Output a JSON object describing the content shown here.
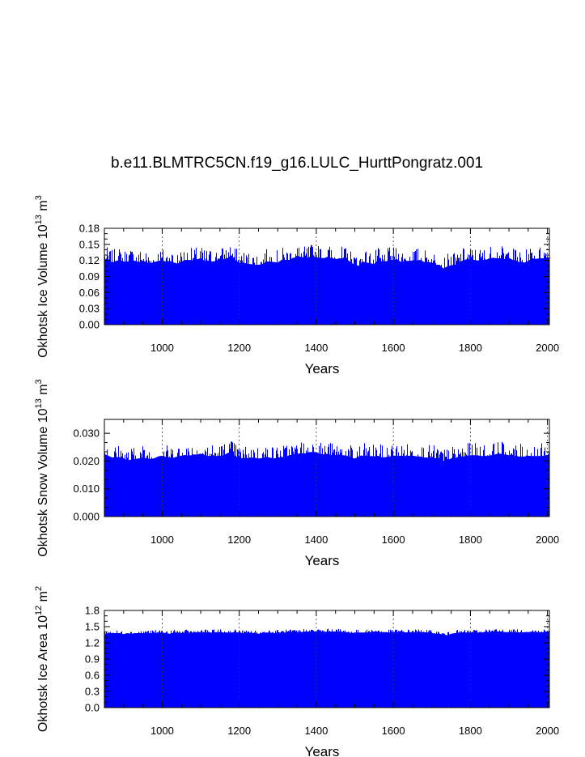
{
  "figure": {
    "title": "b.e11.BLMTRC5CN.f19_g16.LULC_HurttPongratz.001"
  },
  "chart_data": [
    {
      "type": "bar",
      "xlabel": "Years",
      "ylabel_main": "Okhotsk Ice Volume 10",
      "ylabel_exp": "13",
      "ylabel_unit": " m",
      "ylabel_unit_exp": "3",
      "xlim": [
        850,
        2005
      ],
      "ylim": [
        0,
        0.18
      ],
      "xticks": [
        1000,
        1200,
        1400,
        1600,
        1800,
        2000
      ],
      "xtick_labels": [
        "1000",
        "1200",
        "1400",
        "1600",
        "1800",
        "2000"
      ],
      "yticks": [
        0,
        0.03,
        0.06,
        0.09,
        0.12,
        0.15,
        0.18
      ],
      "ytick_labels": [
        "0.00",
        "0.03",
        "0.06",
        "0.09",
        "0.12",
        "0.15",
        "0.18"
      ],
      "color": "#0000ff",
      "grid": "vertical dashed at major x ticks",
      "series": [
        {
          "start_year": 850,
          "step": 10,
          "values": [
            0.123,
            0.121,
            0.116,
            0.119,
            0.121,
            0.118,
            0.118,
            0.121,
            0.119,
            0.117,
            0.12,
            0.116,
            0.115,
            0.117,
            0.119,
            0.12,
            0.118,
            0.119,
            0.116,
            0.114,
            0.118,
            0.121,
            0.121,
            0.12,
            0.122,
            0.124,
            0.119,
            0.12,
            0.118,
            0.119,
            0.124,
            0.122,
            0.125,
            0.13,
            0.121,
            0.115,
            0.116,
            0.114,
            0.113,
            0.112,
            0.112,
            0.113,
            0.118,
            0.118,
            0.117,
            0.116,
            0.121,
            0.121,
            0.121,
            0.125,
            0.126,
            0.127,
            0.123,
            0.126,
            0.128,
            0.126,
            0.125,
            0.124,
            0.127,
            0.124,
            0.122,
            0.124,
            0.122,
            0.122,
            0.116,
            0.112,
            0.11,
            0.118,
            0.116,
            0.115,
            0.113,
            0.121,
            0.114,
            0.118,
            0.121,
            0.121,
            0.122,
            0.117,
            0.119,
            0.119,
            0.12,
            0.12,
            0.121,
            0.117,
            0.117,
            0.116,
            0.112,
            0.112,
            0.105,
            0.109,
            0.111,
            0.112,
            0.117,
            0.12,
            0.122,
            0.122,
            0.121,
            0.12,
            0.121,
            0.121,
            0.124,
            0.125,
            0.124,
            0.124,
            0.122,
            0.125,
            0.121,
            0.12,
            0.115,
            0.116,
            0.119,
            0.124,
            0.123,
            0.124,
            0.124,
            0.126,
            0.124
          ]
        }
      ]
    },
    {
      "type": "bar",
      "xlabel": "Years",
      "ylabel_main": "Okhotsk Snow Volume 10",
      "ylabel_exp": "13",
      "ylabel_unit": " m",
      "ylabel_unit_exp": "3",
      "xlim": [
        850,
        2005
      ],
      "ylim": [
        0,
        0.035
      ],
      "xticks": [
        1000,
        1200,
        1400,
        1600,
        1800,
        2000
      ],
      "xtick_labels": [
        "1000",
        "1200",
        "1400",
        "1600",
        "1800",
        "2000"
      ],
      "yticks": [
        0,
        0.01,
        0.02,
        0.03
      ],
      "ytick_labels": [
        "0.000",
        "0.010",
        "0.020",
        "0.030"
      ],
      "color": "#0000ff",
      "grid": "vertical dashed at major x ticks",
      "series": [
        {
          "start_year": 850,
          "step": 10,
          "values": [
            0.0225,
            0.0219,
            0.0213,
            0.0214,
            0.0214,
            0.021,
            0.0202,
            0.0205,
            0.0208,
            0.0209,
            0.0214,
            0.0209,
            0.0208,
            0.021,
            0.0217,
            0.0219,
            0.0215,
            0.0212,
            0.0212,
            0.0217,
            0.0219,
            0.0222,
            0.0218,
            0.0224,
            0.0223,
            0.0227,
            0.0222,
            0.0218,
            0.0219,
            0.0218,
            0.0219,
            0.0221,
            0.0229,
            0.0233,
            0.0218,
            0.021,
            0.0211,
            0.0211,
            0.0213,
            0.0212,
            0.0209,
            0.0211,
            0.0215,
            0.0212,
            0.0209,
            0.0213,
            0.0214,
            0.0215,
            0.0221,
            0.0224,
            0.0225,
            0.0229,
            0.0227,
            0.0232,
            0.0233,
            0.0232,
            0.0226,
            0.0224,
            0.0226,
            0.0221,
            0.0222,
            0.0223,
            0.0221,
            0.0219,
            0.0211,
            0.0209,
            0.0214,
            0.0219,
            0.022,
            0.0218,
            0.0217,
            0.0219,
            0.0213,
            0.0214,
            0.0216,
            0.022,
            0.0218,
            0.0219,
            0.0218,
            0.0219,
            0.0219,
            0.0217,
            0.0216,
            0.0213,
            0.0212,
            0.0213,
            0.021,
            0.0211,
            0.0201,
            0.0203,
            0.0209,
            0.0208,
            0.0217,
            0.0216,
            0.0218,
            0.0221,
            0.0221,
            0.022,
            0.0218,
            0.0218,
            0.022,
            0.0222,
            0.0226,
            0.0226,
            0.0223,
            0.0221,
            0.0222,
            0.0216,
            0.0216,
            0.0216,
            0.0219,
            0.0218,
            0.0218,
            0.0218,
            0.0219,
            0.0222,
            0.0223
          ]
        }
      ]
    },
    {
      "type": "bar",
      "xlabel": "Years",
      "ylabel_main": "Okhotsk Ice Area 10",
      "ylabel_exp": "12",
      "ylabel_unit": " m",
      "ylabel_unit_exp": "2",
      "xlim": [
        850,
        2005
      ],
      "ylim": [
        0,
        1.8
      ],
      "xticks": [
        1000,
        1200,
        1400,
        1600,
        1800,
        2000
      ],
      "xtick_labels": [
        "1000",
        "1200",
        "1400",
        "1600",
        "1800",
        "2000"
      ],
      "yticks": [
        0,
        0.3,
        0.6,
        0.9,
        1.2,
        1.5,
        1.8
      ],
      "ytick_labels": [
        "0.0",
        "0.3",
        "0.6",
        "0.9",
        "1.2",
        "1.5",
        "1.8"
      ],
      "color": "#0000ff",
      "grid": "vertical dashed at major x ticks",
      "series": [
        {
          "start_year": 850,
          "step": 10,
          "values": [
            1.37,
            1.38,
            1.38,
            1.38,
            1.38,
            1.36,
            1.38,
            1.37,
            1.38,
            1.38,
            1.38,
            1.39,
            1.38,
            1.38,
            1.39,
            1.39,
            1.38,
            1.37,
            1.39,
            1.39,
            1.38,
            1.39,
            1.39,
            1.39,
            1.39,
            1.4,
            1.4,
            1.39,
            1.39,
            1.4,
            1.4,
            1.39,
            1.39,
            1.39,
            1.4,
            1.39,
            1.38,
            1.38,
            1.39,
            1.38,
            1.37,
            1.38,
            1.39,
            1.39,
            1.38,
            1.39,
            1.39,
            1.39,
            1.4,
            1.39,
            1.4,
            1.4,
            1.41,
            1.41,
            1.41,
            1.41,
            1.41,
            1.4,
            1.41,
            1.41,
            1.41,
            1.41,
            1.4,
            1.4,
            1.38,
            1.39,
            1.39,
            1.39,
            1.39,
            1.4,
            1.41,
            1.41,
            1.39,
            1.4,
            1.39,
            1.4,
            1.4,
            1.4,
            1.39,
            1.4,
            1.4,
            1.4,
            1.4,
            1.4,
            1.39,
            1.38,
            1.37,
            1.37,
            1.35,
            1.34,
            1.37,
            1.38,
            1.39,
            1.39,
            1.39,
            1.39,
            1.4,
            1.39,
            1.39,
            1.41,
            1.4,
            1.41,
            1.41,
            1.41,
            1.4,
            1.4,
            1.4,
            1.4,
            1.39,
            1.4,
            1.4,
            1.41,
            1.4,
            1.4,
            1.4,
            1.41,
            1.4
          ]
        }
      ]
    }
  ]
}
